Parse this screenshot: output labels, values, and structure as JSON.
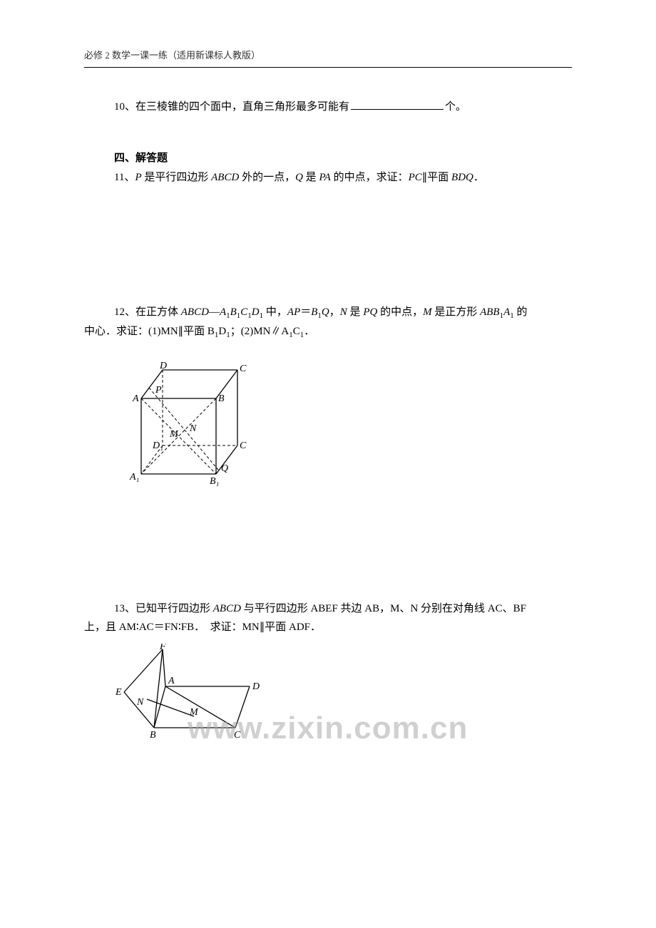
{
  "header": "必修 2 数学一课一练（适用新课标人教版）",
  "q10": {
    "prefix": "10、在三棱锥的四个面中，直角三角形最多可能有",
    "suffix": "个。"
  },
  "section4": "四、解答题",
  "q11": "11、<span class=\"it\">P</span> 是平行四边形 <span class=\"it\">ABCD</span> 外的一点，<span class=\"it\">Q</span> 是 <span class=\"it\">PA</span> 的中点，求证：<span class=\"it\">PC</span>∥平面 <span class=\"it\">BDQ</span>．",
  "q12_l1": "12、在正方体 <span class=\"it\">ABCD</span>—<span class=\"it\">A</span><sub>1</sub><span class=\"it\">B</span><sub>1</sub><span class=\"it\">C</span><sub>1</sub><span class=\"it\">D</span><sub>1</sub> 中，<span class=\"it\">AP</span>＝<span class=\"it\">B</span><sub>1</sub><span class=\"it\">Q</span>，<span class=\"it\">N</span> 是 <span class=\"it\">PQ</span> 的中点，<span class=\"it\">M</span> 是正方形 <span class=\"it\">ABB</span><sub>1</sub><span class=\"it\">A</span><sub>1</sub> 的",
  "q12_l2": "中心．求证：(1)MN∥平面 B<sub>1</sub>D<sub>1</sub>；(2)MN∥A<sub>1</sub>C<sub>1</sub>．",
  "q13_l1": "13、已知平行四边形 <span class=\"it\">ABCD</span> 与平行四边形 ABEF 共边 AB，M、N 分别在对角线 AC、BF",
  "q13_l2": "上，且 AM∶AC＝FN∶FB．　求证：MN∥平面 ADF．",
  "watermark": "www.zixin.com.cn",
  "fig12": {
    "labels": {
      "D": "D",
      "C": "C",
      "A": "A",
      "B": "B",
      "P": "P",
      "N": "N",
      "M": "M",
      "D1": "D₁",
      "C1": "C",
      "A1": "A₁",
      "B1": "B₁",
      "Q": "Q"
    },
    "stroke": "#000000",
    "dash": "4,3"
  },
  "fig13": {
    "labels": {
      "F": "F",
      "E": "E",
      "A": "A",
      "D": "D",
      "N": "N",
      "M": "M",
      "B": "B",
      "C": "C"
    },
    "stroke": "#000000"
  }
}
